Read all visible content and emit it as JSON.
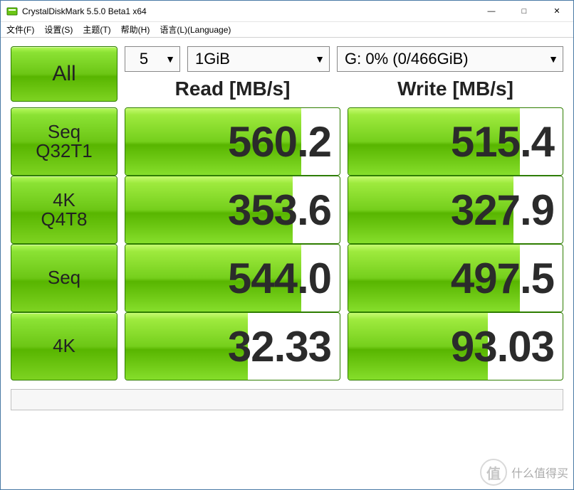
{
  "window": {
    "title": "CrystalDiskMark 5.5.0 Beta1 x64",
    "controls": {
      "min": "—",
      "max": "□",
      "close": "✕"
    }
  },
  "menu": {
    "file": "文件(F)",
    "settings": "设置(S)",
    "theme": "主题(T)",
    "help": "帮助(H)",
    "language": "语言(L)(Language)"
  },
  "selectors": {
    "count": "5",
    "size": "1GiB",
    "drive": "G: 0% (0/466GiB)"
  },
  "headers": {
    "read": "Read [MB/s]",
    "write": "Write [MB/s]"
  },
  "buttons": {
    "all": "All",
    "tests": [
      {
        "l1": "Seq",
        "l2": "Q32T1"
      },
      {
        "l1": "4K",
        "l2": "Q4T8"
      },
      {
        "l1": "Seq",
        "l2": ""
      },
      {
        "l1": "4K",
        "l2": ""
      }
    ]
  },
  "results": {
    "rows": [
      {
        "read": "560.2",
        "read_fill_pct": 82,
        "write": "515.4",
        "write_fill_pct": 80
      },
      {
        "read": "353.6",
        "read_fill_pct": 78,
        "write": "327.9",
        "write_fill_pct": 77
      },
      {
        "read": "544.0",
        "read_fill_pct": 82,
        "write": "497.5",
        "write_fill_pct": 80
      },
      {
        "read": "32.33",
        "read_fill_pct": 57,
        "write": "93.03",
        "write_fill_pct": 65
      }
    ]
  },
  "colors": {
    "green_gradient_top": "#b6f95a",
    "green_gradient_mid": "#6cc615",
    "green_gradient_bot": "#7ed321",
    "green_border": "#2e7d00",
    "text_dark": "#2b2b2b",
    "window_border": "#4a7aa5"
  },
  "watermark": {
    "icon": "值",
    "text": "什么值得买"
  }
}
